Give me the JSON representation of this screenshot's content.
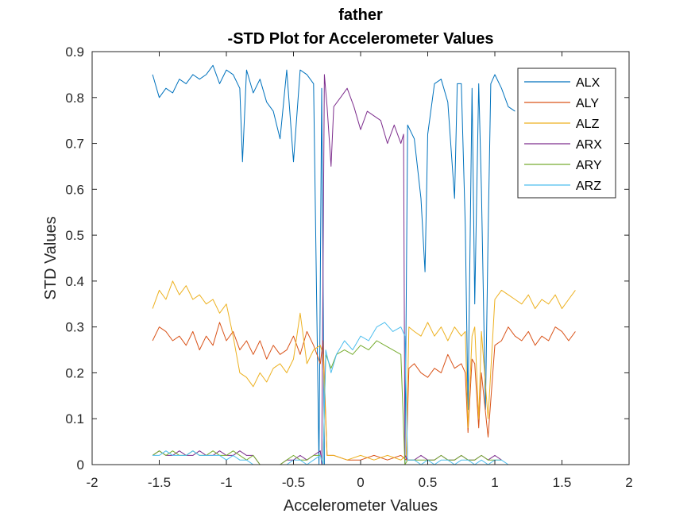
{
  "chart_data": {
    "type": "line",
    "title_line1": "father",
    "title_line2": "-STD Plot for Accelerometer Values",
    "xlabel": "Accelerometer Values",
    "ylabel": "STD Values",
    "xlim": [
      -2,
      2
    ],
    "ylim": [
      0,
      0.9
    ],
    "xticks": [
      "-2",
      "-1.5",
      "-1",
      "-0.5",
      "0",
      "0.5",
      "1",
      "1.5",
      "2"
    ],
    "yticks": [
      "0",
      "0.1",
      "0.2",
      "0.3",
      "0.4",
      "0.5",
      "0.6",
      "0.7",
      "0.8",
      "0.9"
    ],
    "grid": false,
    "legend_position": "top-right",
    "series": [
      {
        "name": "ALX",
        "color": "#0072BD",
        "x": [
          -1.55,
          -1.5,
          -1.45,
          -1.4,
          -1.35,
          -1.3,
          -1.25,
          -1.2,
          -1.15,
          -1.1,
          -1.05,
          -1.0,
          -0.95,
          -0.9,
          -0.88,
          -0.85,
          -0.8,
          -0.75,
          -0.7,
          -0.65,
          -0.6,
          -0.55,
          -0.5,
          -0.45,
          -0.4,
          -0.35,
          -0.31,
          -0.29,
          -0.27,
          -0.26,
          -0.2,
          -0.1,
          0.0,
          0.1,
          0.2,
          0.3,
          0.33,
          0.35,
          0.4,
          0.45,
          0.48,
          0.5,
          0.55,
          0.6,
          0.65,
          0.7,
          0.72,
          0.75,
          0.78,
          0.8,
          0.83,
          0.85,
          0.88,
          0.9,
          0.93,
          0.95,
          0.97,
          1.0,
          1.05,
          1.1,
          1.15
        ],
        "y": [
          0.85,
          0.8,
          0.82,
          0.81,
          0.84,
          0.83,
          0.85,
          0.84,
          0.85,
          0.87,
          0.83,
          0.86,
          0.85,
          0.82,
          0.66,
          0.86,
          0.81,
          0.84,
          0.79,
          0.77,
          0.71,
          0.86,
          0.66,
          0.86,
          0.85,
          0.83,
          0.0,
          0.82,
          0.0,
          0.0,
          0.0,
          0.0,
          0.0,
          0.0,
          0.0,
          0.0,
          0.0,
          0.74,
          0.71,
          0.58,
          0.42,
          0.72,
          0.83,
          0.84,
          0.79,
          0.58,
          0.83,
          0.83,
          0.52,
          0.12,
          0.82,
          0.35,
          0.83,
          0.6,
          0.12,
          0.5,
          0.83,
          0.85,
          0.82,
          0.78,
          0.77
        ]
      },
      {
        "name": "ALY",
        "color": "#D95319",
        "x": [
          -1.55,
          -1.5,
          -1.45,
          -1.4,
          -1.35,
          -1.3,
          -1.25,
          -1.2,
          -1.15,
          -1.1,
          -1.05,
          -1.0,
          -0.95,
          -0.9,
          -0.85,
          -0.8,
          -0.75,
          -0.7,
          -0.65,
          -0.6,
          -0.55,
          -0.5,
          -0.45,
          -0.4,
          -0.35,
          -0.3,
          -0.28,
          -0.25,
          -0.2,
          -0.1,
          0.0,
          0.1,
          0.2,
          0.3,
          0.34,
          0.36,
          0.4,
          0.45,
          0.5,
          0.55,
          0.6,
          0.65,
          0.7,
          0.75,
          0.78,
          0.8,
          0.83,
          0.85,
          0.88,
          0.9,
          0.95,
          1.0,
          1.05,
          1.1,
          1.15,
          1.2,
          1.25,
          1.3,
          1.35,
          1.4,
          1.45,
          1.5,
          1.55,
          1.6
        ],
        "y": [
          0.27,
          0.3,
          0.29,
          0.27,
          0.28,
          0.26,
          0.29,
          0.25,
          0.28,
          0.26,
          0.31,
          0.27,
          0.29,
          0.25,
          0.27,
          0.24,
          0.27,
          0.23,
          0.26,
          0.24,
          0.25,
          0.28,
          0.24,
          0.29,
          0.26,
          0.22,
          0.27,
          0.02,
          0.02,
          0.01,
          0.01,
          0.02,
          0.01,
          0.02,
          0.01,
          0.21,
          0.22,
          0.2,
          0.19,
          0.21,
          0.2,
          0.24,
          0.21,
          0.22,
          0.2,
          0.07,
          0.23,
          0.22,
          0.08,
          0.2,
          0.06,
          0.26,
          0.27,
          0.3,
          0.28,
          0.27,
          0.29,
          0.26,
          0.28,
          0.27,
          0.3,
          0.29,
          0.27,
          0.29
        ]
      },
      {
        "name": "ALZ",
        "color": "#EDB120",
        "x": [
          -1.55,
          -1.5,
          -1.45,
          -1.4,
          -1.35,
          -1.3,
          -1.25,
          -1.2,
          -1.15,
          -1.1,
          -1.05,
          -1.0,
          -0.95,
          -0.9,
          -0.85,
          -0.8,
          -0.75,
          -0.7,
          -0.65,
          -0.6,
          -0.55,
          -0.5,
          -0.45,
          -0.4,
          -0.35,
          -0.3,
          -0.28,
          -0.25,
          -0.2,
          -0.1,
          0.0,
          0.1,
          0.2,
          0.3,
          0.34,
          0.36,
          0.4,
          0.45,
          0.5,
          0.55,
          0.6,
          0.65,
          0.7,
          0.75,
          0.78,
          0.8,
          0.83,
          0.85,
          0.88,
          0.9,
          0.95,
          1.0,
          1.05,
          1.1,
          1.15,
          1.2,
          1.25,
          1.3,
          1.35,
          1.4,
          1.45,
          1.5,
          1.55,
          1.6
        ],
        "y": [
          0.34,
          0.38,
          0.36,
          0.4,
          0.37,
          0.39,
          0.36,
          0.37,
          0.35,
          0.36,
          0.33,
          0.35,
          0.28,
          0.2,
          0.19,
          0.17,
          0.2,
          0.18,
          0.21,
          0.22,
          0.2,
          0.23,
          0.33,
          0.22,
          0.25,
          0.26,
          0.24,
          0.02,
          0.02,
          0.01,
          0.02,
          0.01,
          0.02,
          0.01,
          0.02,
          0.3,
          0.29,
          0.28,
          0.31,
          0.28,
          0.3,
          0.27,
          0.3,
          0.28,
          0.29,
          0.08,
          0.28,
          0.3,
          0.1,
          0.29,
          0.1,
          0.36,
          0.38,
          0.37,
          0.36,
          0.35,
          0.37,
          0.34,
          0.36,
          0.35,
          0.37,
          0.34,
          0.36,
          0.38
        ]
      },
      {
        "name": "ARX",
        "color": "#7E2F8E",
        "x": [
          -1.55,
          -1.5,
          -1.45,
          -1.4,
          -1.35,
          -1.3,
          -1.25,
          -1.2,
          -1.15,
          -1.1,
          -1.05,
          -1.0,
          -0.95,
          -0.9,
          -0.85,
          -0.8,
          -0.75,
          -0.7,
          -0.65,
          -0.6,
          -0.55,
          -0.5,
          -0.45,
          -0.4,
          -0.35,
          -0.3,
          -0.29,
          -0.27,
          -0.25,
          -0.22,
          -0.2,
          -0.15,
          -0.1,
          -0.05,
          0.0,
          0.05,
          0.1,
          0.15,
          0.2,
          0.25,
          0.3,
          0.32,
          0.33,
          0.35,
          0.4,
          0.45,
          0.5,
          0.55,
          0.6,
          0.65,
          0.7,
          0.75,
          0.8,
          0.85,
          0.9,
          0.95,
          1.0,
          1.05
        ],
        "y": [
          0.02,
          0.03,
          0.02,
          0.02,
          0.03,
          0.02,
          0.02,
          0.03,
          0.02,
          0.02,
          0.03,
          0.02,
          0.02,
          0.03,
          0.02,
          0.02,
          0.0,
          0.0,
          0.0,
          0.0,
          0.01,
          0.01,
          0.02,
          0.01,
          0.02,
          0.03,
          0.0,
          0.85,
          0.78,
          0.65,
          0.78,
          0.8,
          0.82,
          0.78,
          0.73,
          0.77,
          0.76,
          0.75,
          0.7,
          0.74,
          0.7,
          0.72,
          0.02,
          0.01,
          0.01,
          0.02,
          0.01,
          0.01,
          0.02,
          0.01,
          0.01,
          0.02,
          0.01,
          0.01,
          0.02,
          0.01,
          0.02,
          0.01
        ]
      },
      {
        "name": "ARY",
        "color": "#77AC30",
        "x": [
          -1.55,
          -1.5,
          -1.45,
          -1.4,
          -1.35,
          -1.3,
          -1.25,
          -1.2,
          -1.15,
          -1.1,
          -1.05,
          -1.0,
          -0.95,
          -0.9,
          -0.85,
          -0.8,
          -0.75,
          -0.7,
          -0.65,
          -0.6,
          -0.55,
          -0.5,
          -0.45,
          -0.4,
          -0.35,
          -0.3,
          -0.28,
          -0.26,
          -0.22,
          -0.18,
          -0.12,
          -0.06,
          0.0,
          0.06,
          0.12,
          0.18,
          0.24,
          0.3,
          0.33,
          0.35,
          0.4,
          0.45,
          0.5,
          0.55,
          0.6,
          0.65,
          0.7,
          0.75,
          0.8,
          0.85,
          0.9,
          0.95,
          1.0,
          1.05
        ],
        "y": [
          0.02,
          0.03,
          0.02,
          0.03,
          0.02,
          0.02,
          0.03,
          0.02,
          0.02,
          0.03,
          0.02,
          0.02,
          0.03,
          0.02,
          0.01,
          0.02,
          0.0,
          0.0,
          0.0,
          0.0,
          0.01,
          0.02,
          0.01,
          0.01,
          0.02,
          0.02,
          0.0,
          0.24,
          0.21,
          0.24,
          0.25,
          0.24,
          0.26,
          0.25,
          0.27,
          0.26,
          0.25,
          0.24,
          0.0,
          0.01,
          0.01,
          0.01,
          0.01,
          0.01,
          0.02,
          0.01,
          0.01,
          0.02,
          0.01,
          0.01,
          0.02,
          0.01,
          0.01,
          0.01
        ]
      },
      {
        "name": "ARZ",
        "color": "#4DBEEE",
        "x": [
          -1.55,
          -1.5,
          -1.45,
          -1.4,
          -1.35,
          -1.3,
          -1.25,
          -1.2,
          -1.15,
          -1.1,
          -1.05,
          -1.0,
          -0.95,
          -0.9,
          -0.85,
          -0.8,
          -0.75,
          -0.7,
          -0.65,
          -0.6,
          -0.55,
          -0.5,
          -0.45,
          -0.4,
          -0.35,
          -0.3,
          -0.28,
          -0.26,
          -0.22,
          -0.18,
          -0.12,
          -0.06,
          0.0,
          0.06,
          0.12,
          0.18,
          0.24,
          0.3,
          0.33,
          0.35,
          0.4,
          0.45,
          0.5,
          0.55,
          0.6,
          0.65,
          0.7,
          0.75,
          0.8,
          0.85,
          0.9,
          0.95,
          1.0,
          1.05,
          1.1,
          1.2,
          1.3,
          1.4,
          1.5,
          1.6
        ],
        "y": [
          0.02,
          0.02,
          0.03,
          0.02,
          0.02,
          0.02,
          0.03,
          0.02,
          0.02,
          0.02,
          0.02,
          0.01,
          0.02,
          0.01,
          0.01,
          0.0,
          0.0,
          0.0,
          0.0,
          0.0,
          0.0,
          0.01,
          0.01,
          0.0,
          0.01,
          0.02,
          0.0,
          0.25,
          0.2,
          0.24,
          0.27,
          0.25,
          0.28,
          0.27,
          0.3,
          0.31,
          0.29,
          0.3,
          0.28,
          0.01,
          0.01,
          0.0,
          0.01,
          0.0,
          0.01,
          0.01,
          0.0,
          0.01,
          0.01,
          0.0,
          0.01,
          0.0,
          0.01,
          0.01,
          0.0,
          0.0,
          0.0,
          0.0,
          0.0,
          0.0
        ]
      }
    ]
  }
}
